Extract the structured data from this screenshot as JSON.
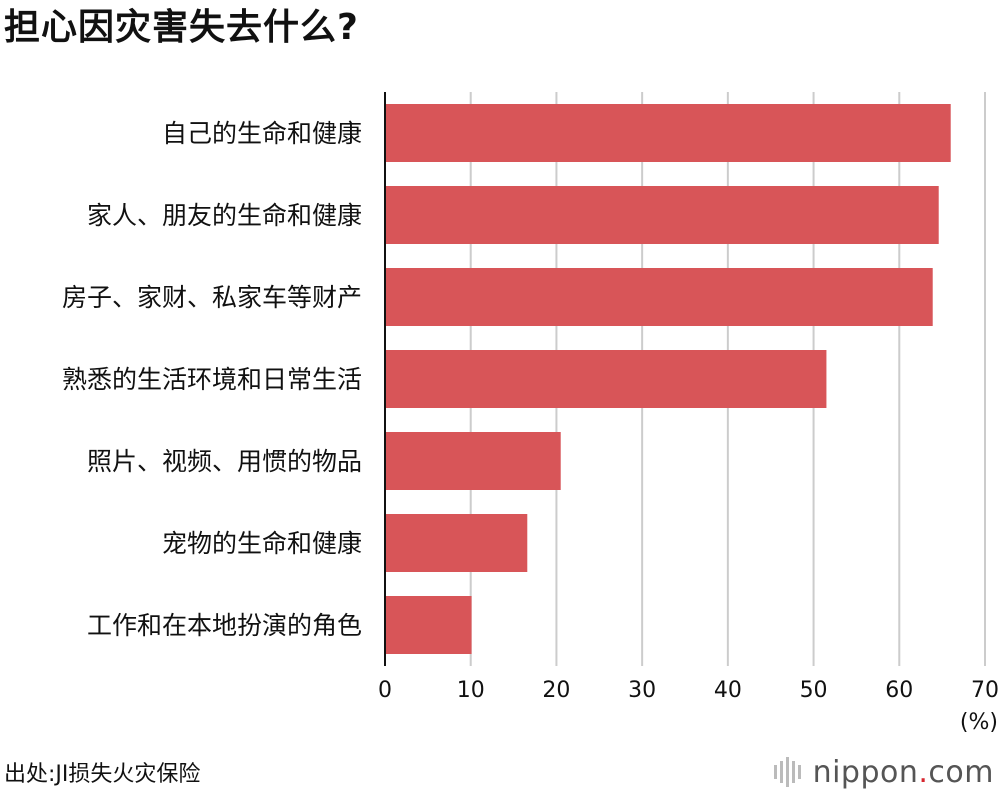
{
  "title": "担心因灾害失去什么?",
  "source": "出处:JI损失火灾保险",
  "brand": {
    "name": "nippon",
    "dot": ".",
    "tld": "com"
  },
  "colors": {
    "bar": "#d85558",
    "grid": "#cccccc",
    "axis": "#111111"
  },
  "chart_data": {
    "type": "bar",
    "orientation": "horizontal",
    "categories": [
      "自己的生命和健康",
      "家人、朋友的生命和健康",
      "房子、家财、私家车等财产",
      "熟悉的生活环境和日常生活",
      "照片、视频、用惯的物品",
      "宠物的生命和健康",
      "工作和在本地扮演的角色"
    ],
    "values": [
      66.0,
      64.6,
      63.9,
      51.5,
      20.5,
      16.6,
      10.1
    ],
    "xlim": [
      0,
      70
    ],
    "xticks": [
      0,
      10,
      20,
      30,
      40,
      50,
      60,
      70
    ],
    "unit_label": "(%)",
    "grid": true
  }
}
